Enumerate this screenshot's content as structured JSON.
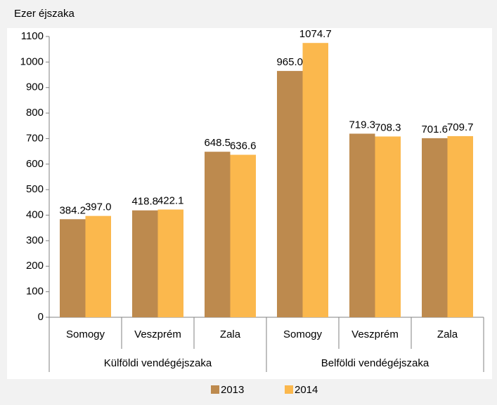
{
  "chart_data": {
    "type": "bar",
    "y_label": "Ezer éjszaka",
    "categories": [
      "Somogy",
      "Veszprém",
      "Zala",
      "Somogy",
      "Veszprém",
      "Zala"
    ],
    "groups": [
      "Külföldi vendégéjszaka",
      "Belföldi vendégéjszaka"
    ],
    "series": [
      {
        "name": "2013",
        "color": "#bd8a4e",
        "values": [
          384.2,
          418.8,
          648.5,
          965.0,
          719.3,
          701.6
        ],
        "value_labels": [
          "384.2",
          "418.8",
          "648.5",
          "965.0",
          "719.3",
          "701.6"
        ]
      },
      {
        "name": "2014",
        "color": "#fbb84d",
        "values": [
          397.0,
          422.1,
          636.6,
          1074.7,
          708.3,
          709.7
        ],
        "value_labels": [
          "397.0",
          "422.1",
          "636.6",
          "1074.7",
          "708.3",
          "709.7"
        ]
      }
    ],
    "ylim": [
      0,
      1100
    ],
    "yticks": [
      0,
      100,
      200,
      300,
      400,
      500,
      600,
      700,
      800,
      900,
      1000,
      1100
    ],
    "grid": false
  }
}
